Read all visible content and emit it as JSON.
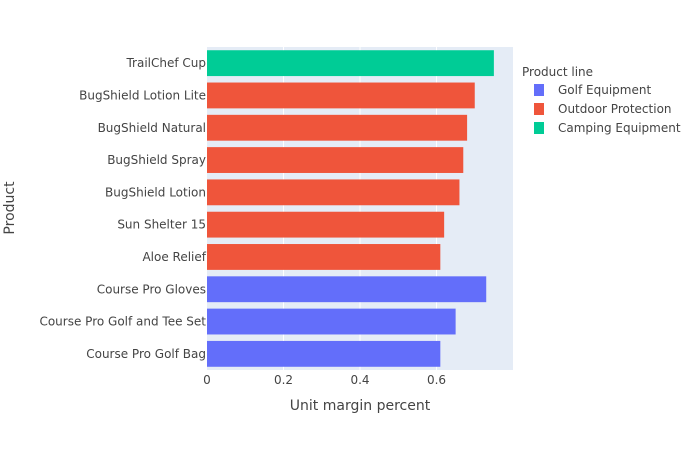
{
  "chart_data": {
    "type": "bar",
    "orientation": "horizontal",
    "xlabel": "Unit margin percent",
    "ylabel": "Product",
    "xlim": [
      0,
      0.8
    ],
    "xticks": [
      0,
      0.2,
      0.4,
      0.6
    ],
    "xtick_labels": [
      "0",
      "0.2",
      "0.4",
      "0.6"
    ],
    "grid": true,
    "legend": {
      "title": "Product line",
      "placement": "right",
      "entries": [
        "Golf Equipment",
        "Outdoor Protection",
        "Camping Equipment"
      ]
    },
    "colors": {
      "Golf Equipment": "#636efa",
      "Outdoor Protection": "#ef553b",
      "Camping Equipment": "#00cc96",
      "plot_background": "#e5ecf6",
      "text": "#444444"
    },
    "categories": [
      "Course Pro Golf Bag",
      "Course Pro Golf and Tee Set",
      "Course Pro Gloves",
      "Aloe Relief",
      "Sun Shelter 15",
      "BugShield Lotion",
      "BugShield Spray",
      "BugShield Natural",
      "BugShield Lotion Lite",
      "TrailChef Cup"
    ],
    "series": [
      {
        "name": "Golf Equipment",
        "values": [
          0.61,
          0.65,
          0.73,
          null,
          null,
          null,
          null,
          null,
          null,
          null
        ]
      },
      {
        "name": "Outdoor Protection",
        "values": [
          null,
          null,
          null,
          0.61,
          0.62,
          0.66,
          0.67,
          0.68,
          0.7,
          null
        ]
      },
      {
        "name": "Camping Equipment",
        "values": [
          null,
          null,
          null,
          null,
          null,
          null,
          null,
          null,
          null,
          0.75
        ]
      }
    ]
  }
}
